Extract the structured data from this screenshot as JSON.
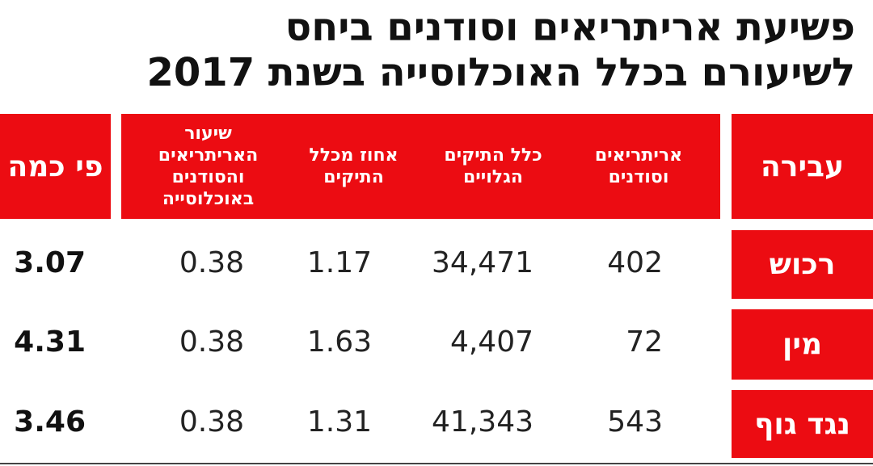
{
  "title": {
    "line1": "פשיעת אריתריאים וסודנים ביחס",
    "line2": "לשיעורם בכלל האוכלוסייה בשנת 2017"
  },
  "colors": {
    "header_bg": "#ec0c12",
    "header_text": "#ffffff",
    "text": "#222222"
  },
  "chart_data": {
    "type": "table",
    "title": "פשיעת אריתריאים וסודנים ביחס לשיעורם בכלל האוכלוסייה בשנת 2017",
    "columns": [
      "עבירה",
      "אריתריאים וסודנים",
      "כלל התיקים הגלויים",
      "אחוז מכלל התיקים",
      "שיעור האריתריאים והסודנים באוכלוסייה",
      "פי כמה"
    ],
    "rows": [
      {
        "label": "רכוש",
        "cells": [
          "402",
          "34,471",
          "1.17",
          "0.38",
          "3.07"
        ]
      },
      {
        "label": "מין",
        "cells": [
          "72",
          "4,407",
          "1.63",
          "0.38",
          "4.31"
        ]
      },
      {
        "label": "נגד גוף",
        "cells": [
          "543",
          "41,343",
          "1.31",
          "0.38",
          "3.46"
        ]
      }
    ]
  }
}
